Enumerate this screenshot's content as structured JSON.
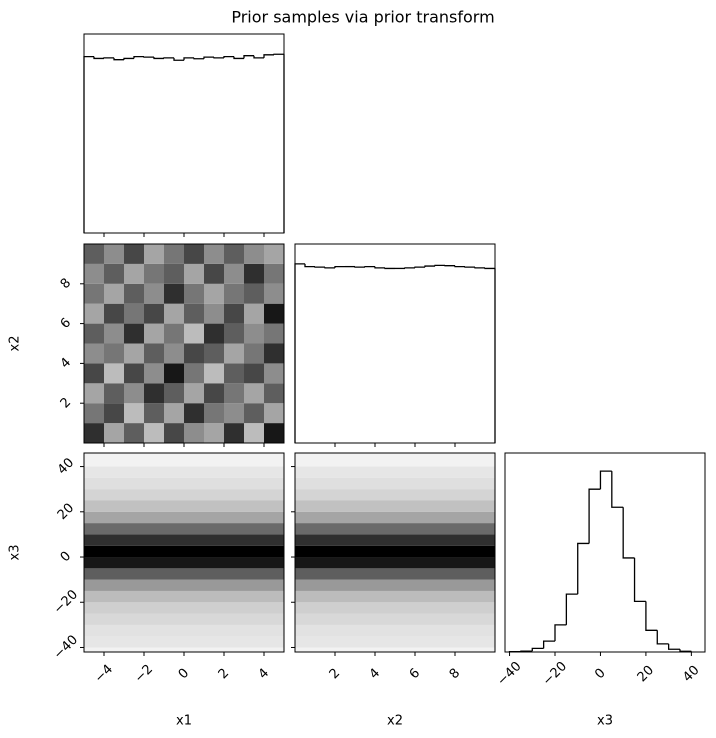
{
  "chart_data": {
    "type": "corner",
    "title": "Prior samples via prior transform",
    "axes": [
      {
        "label": "x1",
        "lim": [
          -5,
          5
        ],
        "ticks": [
          {
            "value": -4,
            "label": "−4"
          },
          {
            "value": -2,
            "label": "−2"
          },
          0,
          2,
          4
        ]
      },
      {
        "label": "x2",
        "lim": [
          0,
          10
        ],
        "ticks": [
          2,
          4,
          6,
          8
        ]
      },
      {
        "label": "x3",
        "lim": [
          -42,
          46
        ],
        "ticks": [
          {
            "value": -40,
            "label": "−40"
          },
          {
            "value": -20,
            "label": "−20"
          },
          0,
          20,
          40
        ]
      }
    ],
    "panels": [
      {
        "type": "hist",
        "color": "#000000",
        "ylim": [
          0,
          1100
        ],
        "bins": [
          -5,
          -4.5,
          -4,
          -3.5,
          -3,
          -2.5,
          -2,
          -1.5,
          -1,
          -0.5,
          0,
          0.5,
          1,
          1.5,
          2,
          2.5,
          3,
          3.5,
          4,
          4.5,
          5
        ],
        "values": [
          975,
          965,
          968,
          958,
          965,
          975,
          972,
          965,
          968,
          955,
          968,
          963,
          972,
          968,
          975,
          965,
          980,
          968,
          985,
          988
        ]
      },
      {
        "type": "hist2d",
        "xbins": [
          -5,
          -4,
          -3,
          -2,
          -1,
          0,
          1,
          2,
          3,
          4,
          5
        ],
        "ybins": [
          0,
          1,
          2,
          3,
          4,
          5,
          6,
          7,
          8,
          9,
          10
        ],
        "values": [
          [
            0.8,
            0.3,
            0.6,
            0.2,
            0.7,
            0.4,
            0.3,
            0.8,
            0.2,
            0.9
          ],
          [
            0.5,
            0.7,
            0.2,
            0.6,
            0.3,
            0.8,
            0.5,
            0.4,
            0.6,
            0.3
          ],
          [
            0.3,
            0.6,
            0.4,
            0.8,
            0.6,
            0.3,
            0.7,
            0.5,
            0.3,
            0.6
          ],
          [
            0.7,
            0.2,
            0.7,
            0.4,
            0.9,
            0.5,
            0.2,
            0.6,
            0.7,
            0.4
          ],
          [
            0.4,
            0.5,
            0.3,
            0.6,
            0.4,
            0.7,
            0.6,
            0.3,
            0.5,
            0.8
          ],
          [
            0.6,
            0.4,
            0.8,
            0.3,
            0.5,
            0.2,
            0.8,
            0.6,
            0.4,
            0.5
          ],
          [
            0.3,
            0.7,
            0.5,
            0.7,
            0.3,
            0.6,
            0.4,
            0.7,
            0.3,
            0.9
          ],
          [
            0.5,
            0.3,
            0.6,
            0.4,
            0.8,
            0.5,
            0.3,
            0.5,
            0.6,
            0.4
          ],
          [
            0.4,
            0.6,
            0.3,
            0.5,
            0.6,
            0.3,
            0.7,
            0.4,
            0.8,
            0.5
          ],
          [
            0.6,
            0.4,
            0.7,
            0.3,
            0.5,
            0.7,
            0.4,
            0.6,
            0.4,
            0.3
          ]
        ]
      },
      {
        "type": "hist",
        "color": "#000000",
        "ylim": [
          0,
          1100
        ],
        "bins": [
          0,
          0.5,
          1,
          1.5,
          2,
          2.5,
          3,
          3.5,
          4,
          4.5,
          5,
          5.5,
          6,
          6.5,
          7,
          7.5,
          8,
          8.5,
          9,
          9.5,
          10
        ],
        "values": [
          990,
          975,
          972,
          968,
          975,
          975,
          972,
          975,
          968,
          965,
          965,
          968,
          972,
          978,
          982,
          980,
          975,
          972,
          968,
          965
        ]
      },
      {
        "type": "hist2d",
        "xbins": [
          -5,
          5
        ],
        "ybins": [
          -40,
          -35,
          -30,
          -25,
          -20,
          -15,
          -10,
          -5,
          0,
          5,
          10,
          15,
          20,
          25,
          30,
          35,
          40
        ],
        "values": [
          [
            0.02
          ],
          [
            0.04
          ],
          [
            0.08
          ],
          [
            0.12
          ],
          [
            0.2
          ],
          [
            0.35
          ],
          [
            0.6
          ],
          [
            0.9
          ],
          [
            1
          ],
          [
            0.8
          ],
          [
            0.55
          ],
          [
            0.3
          ],
          [
            0.18
          ],
          [
            0.1
          ],
          [
            0.05
          ],
          [
            0.02
          ]
        ]
      },
      {
        "type": "hist2d",
        "xbins": [
          0,
          10
        ],
        "ybins": [
          -40,
          -35,
          -30,
          -25,
          -20,
          -15,
          -10,
          -5,
          0,
          5,
          10,
          15,
          20,
          25,
          30,
          35,
          40
        ],
        "values": [
          [
            0.02
          ],
          [
            0.04
          ],
          [
            0.08
          ],
          [
            0.12
          ],
          [
            0.2
          ],
          [
            0.35
          ],
          [
            0.6
          ],
          [
            0.9
          ],
          [
            1
          ],
          [
            0.8
          ],
          [
            0.55
          ],
          [
            0.3
          ],
          [
            0.18
          ],
          [
            0.1
          ],
          [
            0.05
          ],
          [
            0.02
          ]
        ]
      },
      {
        "type": "hist",
        "color": "#000000",
        "ylim": [
          0,
          1100
        ],
        "bins": [
          -40,
          -35,
          -30,
          -25,
          -20,
          -15,
          -10,
          -5,
          0,
          5,
          10,
          15,
          20,
          25,
          30,
          35,
          40
        ],
        "values": [
          2,
          5,
          20,
          60,
          150,
          320,
          600,
          900,
          1000,
          800,
          520,
          280,
          120,
          45,
          15,
          4
        ]
      }
    ]
  }
}
